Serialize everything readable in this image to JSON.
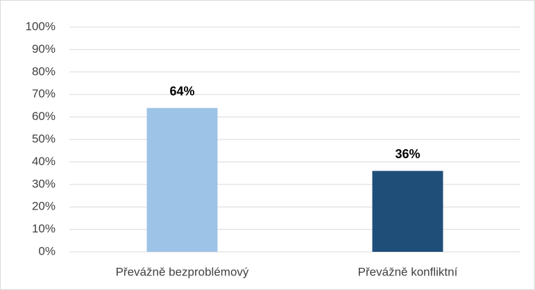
{
  "chart_data": {
    "type": "bar",
    "categories": [
      "Převážně bezproblémový",
      "Převážně konfliktní"
    ],
    "values": [
      64,
      36
    ],
    "value_labels": [
      "64%",
      "36%"
    ],
    "colors": [
      "#9dc3e6",
      "#1f4e79"
    ],
    "ylim": [
      0,
      100
    ],
    "yticks": [
      {
        "value": 0,
        "label": "0%"
      },
      {
        "value": 10,
        "label": "10%"
      },
      {
        "value": 20,
        "label": "20%"
      },
      {
        "value": 30,
        "label": "30%"
      },
      {
        "value": 40,
        "label": "40%"
      },
      {
        "value": 50,
        "label": "50%"
      },
      {
        "value": 60,
        "label": "60%"
      },
      {
        "value": 70,
        "label": "70%"
      },
      {
        "value": 80,
        "label": "80%"
      },
      {
        "value": 90,
        "label": "90%"
      },
      {
        "value": 100,
        "label": "100%"
      }
    ],
    "grid": true
  }
}
